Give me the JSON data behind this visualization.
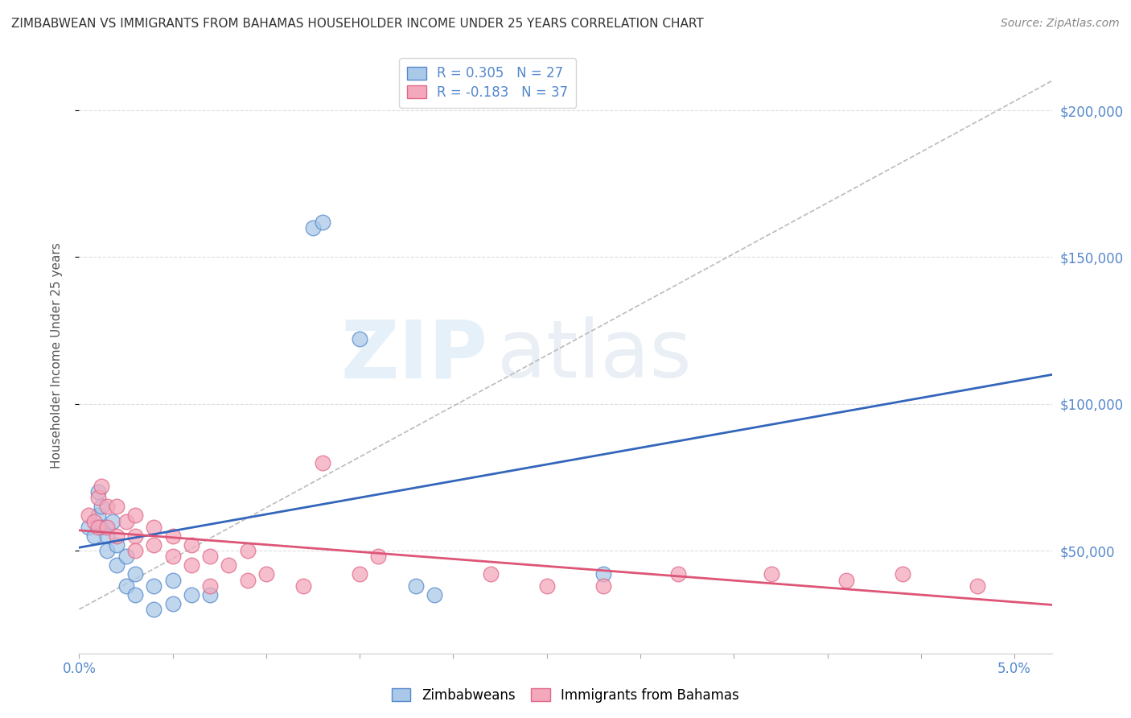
{
  "title": "ZIMBABWEAN VS IMMIGRANTS FROM BAHAMAS HOUSEHOLDER INCOME UNDER 25 YEARS CORRELATION CHART",
  "source": "Source: ZipAtlas.com",
  "ylabel": "Householder Income Under 25 years",
  "legend_series": [
    {
      "label": "Zimbabweans",
      "color": "#aac9e8",
      "border": "#5588cc",
      "R": 0.305,
      "N": 27
    },
    {
      "label": "Immigrants from Bahamas",
      "color": "#f4a8bc",
      "border": "#e06888",
      "R": -0.183,
      "N": 37
    }
  ],
  "blue_line_color": "#3366bb",
  "pink_line_color": "#dd5577",
  "dash_line_color": "#bbbbbb",
  "yticks": [
    50000,
    100000,
    150000,
    200000
  ],
  "ylim": [
    15000,
    218000
  ],
  "xlim": [
    0.0,
    0.052
  ],
  "blue_scatter_x": [
    0.0005,
    0.0008,
    0.001,
    0.001,
    0.0012,
    0.0012,
    0.0015,
    0.0015,
    0.0018,
    0.002,
    0.002,
    0.0025,
    0.0025,
    0.003,
    0.003,
    0.004,
    0.004,
    0.005,
    0.005,
    0.006,
    0.007,
    0.0125,
    0.013,
    0.015,
    0.018,
    0.019,
    0.028
  ],
  "blue_scatter_y": [
    58000,
    55000,
    62000,
    70000,
    58000,
    65000,
    55000,
    50000,
    60000,
    52000,
    45000,
    38000,
    48000,
    42000,
    35000,
    38000,
    30000,
    40000,
    32000,
    35000,
    35000,
    160000,
    162000,
    122000,
    38000,
    35000,
    42000
  ],
  "pink_scatter_x": [
    0.0005,
    0.0008,
    0.001,
    0.001,
    0.0012,
    0.0015,
    0.0015,
    0.002,
    0.002,
    0.0025,
    0.003,
    0.003,
    0.003,
    0.004,
    0.004,
    0.005,
    0.005,
    0.006,
    0.006,
    0.007,
    0.007,
    0.008,
    0.009,
    0.009,
    0.01,
    0.012,
    0.013,
    0.015,
    0.016,
    0.022,
    0.025,
    0.028,
    0.032,
    0.037,
    0.041,
    0.044,
    0.048
  ],
  "pink_scatter_y": [
    62000,
    60000,
    68000,
    58000,
    72000,
    65000,
    58000,
    55000,
    65000,
    60000,
    55000,
    62000,
    50000,
    52000,
    58000,
    48000,
    55000,
    52000,
    45000,
    48000,
    38000,
    45000,
    40000,
    50000,
    42000,
    38000,
    80000,
    42000,
    48000,
    42000,
    38000,
    38000,
    42000,
    42000,
    40000,
    42000,
    38000
  ],
  "watermark_zip": "ZIP",
  "watermark_atlas": "atlas",
  "background_color": "#ffffff",
  "plot_bg_color": "#ffffff",
  "grid_color": "#dddddd",
  "title_color": "#333333",
  "source_color": "#888888",
  "ylabel_color": "#555555",
  "tick_color": "#5588cc"
}
